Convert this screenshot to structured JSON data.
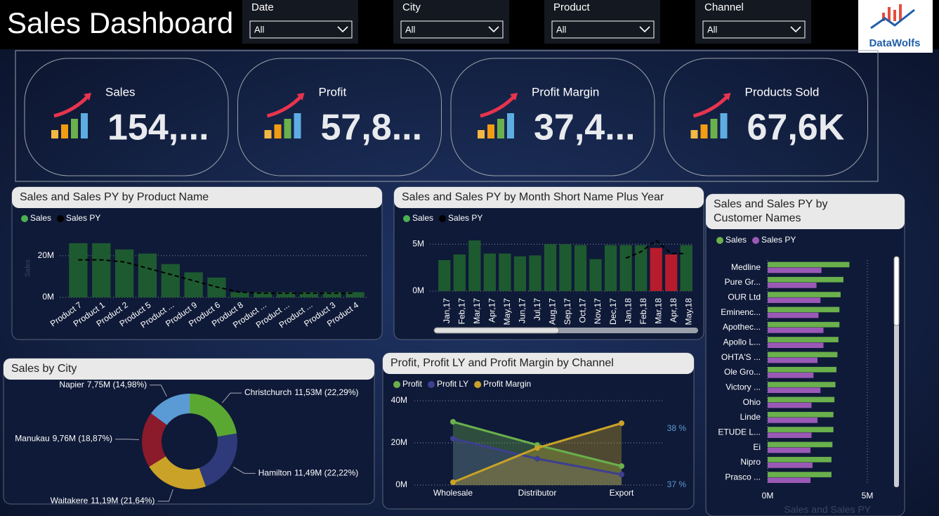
{
  "header": {
    "title": "Sales Dashboard",
    "logo": "DataWolfs"
  },
  "filters": [
    {
      "label": "Date",
      "value": "All"
    },
    {
      "label": "City",
      "value": "All"
    },
    {
      "label": "Product",
      "value": "All"
    },
    {
      "label": "Channel",
      "value": "All"
    }
  ],
  "kpis": [
    {
      "label": "Sales",
      "value": "154,..."
    },
    {
      "label": "Profit",
      "value": "57,8..."
    },
    {
      "label": "Profit Margin",
      "value": "37,4..."
    },
    {
      "label": "Products Sold",
      "value": "67,6K"
    }
  ],
  "chart_data": [
    {
      "type": "bar",
      "title": "Sales and Sales PY by Product Name",
      "y_label": "Sales",
      "categories": [
        "Product 7",
        "Product 1",
        "Product 2",
        "Product 5",
        "Product ...",
        "Product 9",
        "Product 6",
        "Product 8",
        "Product ...",
        "Product ...",
        "Product ...",
        "Product 3",
        "Product 4"
      ],
      "series": [
        {
          "name": "Sales",
          "color": "#1e5a30",
          "values": [
            26,
            26,
            23,
            21,
            16,
            12,
            9.5,
            2.5,
            2.5,
            2.5,
            2.5,
            2.5,
            2.5
          ]
        },
        {
          "name": "Sales PY",
          "color": "#000000",
          "values": [
            18,
            18,
            17,
            14,
            11,
            8,
            5,
            2.5,
            2,
            2,
            2,
            2,
            2
          ]
        }
      ],
      "ylim": [
        0,
        28
      ],
      "yticks": [
        {
          "value": 0,
          "label": "0M"
        },
        {
          "value": 20,
          "label": "20M"
        }
      ],
      "grid": true
    },
    {
      "type": "bar",
      "title": "Sales and Sales PY by Month Short Name Plus Year",
      "categories": [
        "Jan,17",
        "Feb,17",
        "Mar,17",
        "Apr,17",
        "May,17",
        "Jun,17",
        "Jul,17",
        "Aug,17",
        "Sep,17",
        "Oct,17",
        "Nov,17",
        "Dec,17",
        "Jan,18",
        "Feb,18",
        "Mar,18",
        "Apr,18",
        "May,18"
      ],
      "series": [
        {
          "name": "Sales",
          "color": "#1e5a30",
          "values": [
            3.3,
            3.9,
            5.4,
            4.0,
            4.0,
            3.7,
            3.8,
            5.0,
            5.0,
            4.9,
            3.4,
            4.9,
            4.9,
            4.9,
            4.6,
            3.9,
            4.9
          ],
          "bar_colors": [
            "#1e5a30",
            "#1e5a30",
            "#1e5a30",
            "#1e5a30",
            "#1e5a30",
            "#1e5a30",
            "#1e5a30",
            "#1e5a30",
            "#1e5a30",
            "#1e5a30",
            "#1e5a30",
            "#1e5a30",
            "#1e5a30",
            "#1e5a30",
            "#b71c2c",
            "#b71c2c",
            "#1e5a30"
          ]
        },
        {
          "name": "Sales PY",
          "color": "#000000",
          "values": [
            null,
            null,
            null,
            null,
            null,
            null,
            null,
            null,
            null,
            null,
            null,
            null,
            3.5,
            4.2,
            5.4,
            4.0,
            4.0
          ]
        }
      ],
      "ylim": [
        0,
        6
      ],
      "yticks": [
        {
          "value": 0,
          "label": "0M"
        },
        {
          "value": 5,
          "label": "5M"
        }
      ],
      "grid": true
    },
    {
      "type": "hbar",
      "title": "Sales and Sales PY by Customer Names",
      "x_label": "Sales and Sales PY",
      "categories": [
        "Medline",
        "Pure Gr...",
        "OUR Ltd",
        "Eminenc...",
        "Apothec...",
        "Apollo L...",
        "OHTA'S ...",
        "Ole Gro...",
        "Victory ...",
        "Ohio",
        "Linde",
        "ETUDE L...",
        "Ei",
        "Nipro",
        "Prasco ..."
      ],
      "series": [
        {
          "name": "Sales",
          "color": "#6ab04c",
          "values": [
            4.1,
            3.8,
            3.66,
            3.6,
            3.6,
            3.55,
            3.5,
            3.45,
            3.4,
            3.35,
            3.3,
            3.3,
            3.25,
            3.2,
            3.2
          ]
        },
        {
          "name": "Sales PY",
          "color": "#9b59b6",
          "values": [
            2.7,
            2.45,
            2.65,
            2.55,
            2.8,
            2.8,
            2.5,
            2.3,
            2.65,
            2.2,
            2.5,
            2.2,
            2.15,
            2.25,
            2.15
          ]
        }
      ],
      "xlim": [
        0,
        5.3
      ],
      "xticks": [
        {
          "value": 0,
          "label": "0M"
        },
        {
          "value": 5,
          "label": "5M"
        }
      ],
      "grid": true
    },
    {
      "type": "pie",
      "title": "Sales by City",
      "categories": [
        "Christchurch",
        "Hamilton",
        "Waitakere",
        "Manukau",
        "Napier"
      ],
      "values": [
        11.53,
        11.49,
        11.19,
        9.76,
        7.75
      ],
      "value_labels": [
        "11,53M (22,29%)",
        "11,49M (22,22%)",
        "11,19M (21,64%)",
        "9,76M (18,87%)",
        "7,75M (14,98%)"
      ],
      "colors": [
        "#5aa832",
        "#2e3a7a",
        "#c9a227",
        "#8b1a2b",
        "#5b9bd5"
      ]
    },
    {
      "type": "line",
      "title": "Profit, Profit LY and Profit Margin by Channel",
      "categories": [
        "Wholesale",
        "Distributor",
        "Export"
      ],
      "series": [
        {
          "name": "Profit",
          "color": "#6ab04c",
          "values": [
            30,
            19,
            9
          ]
        },
        {
          "name": "Profit LY",
          "color": "#3d3f8f",
          "values": [
            22,
            12.5,
            5
          ]
        },
        {
          "name": "Profit Margin",
          "color": "#c9a227",
          "axis": "y2",
          "values": [
            37.05,
            37.66,
            38.1
          ]
        }
      ],
      "ylim": [
        0,
        40
      ],
      "yticks": [
        {
          "value": 0,
          "label": "0M"
        },
        {
          "value": 20,
          "label": "20M"
        },
        {
          "value": 40,
          "label": "40M"
        }
      ],
      "y2lim": [
        37,
        38.5
      ],
      "y2ticks": [
        {
          "value": 37,
          "label": "37 %"
        },
        {
          "value": 38,
          "label": "38 %"
        }
      ],
      "grid": true
    }
  ]
}
